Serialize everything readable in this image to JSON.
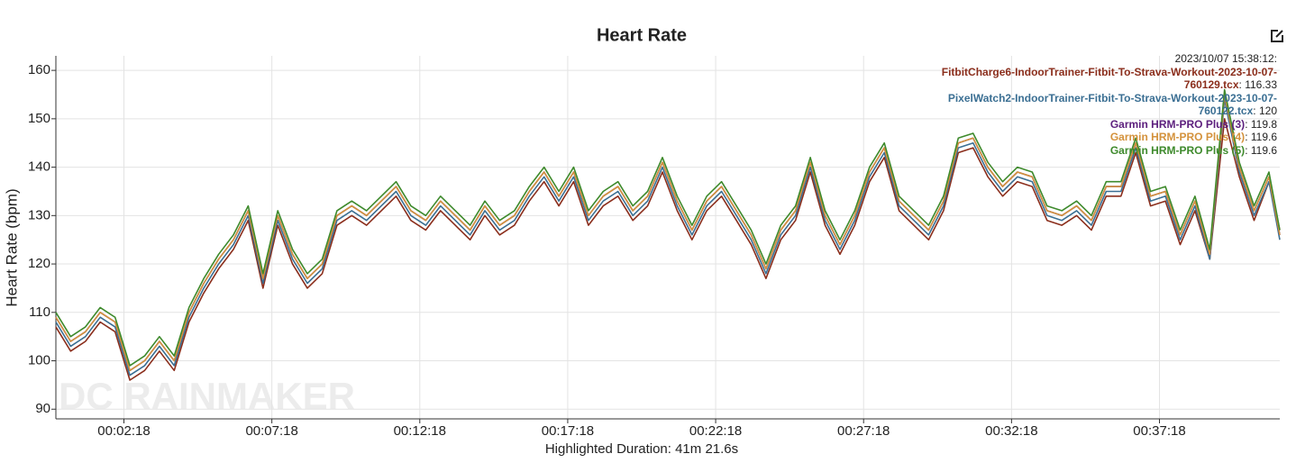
{
  "chart_data": {
    "type": "line",
    "title": "Heart Rate",
    "ylabel": "Heart Rate (bpm)",
    "xlabel": "Highlighted Duration: 41m 21.6s",
    "watermark": "DC RAINMAKER",
    "tooltip_title": "2023/10/07 15:38:12:",
    "grid": true,
    "ylim": [
      88,
      163
    ],
    "yticks": [
      90,
      100,
      110,
      120,
      130,
      140,
      150,
      160
    ],
    "xlim": [
      0,
      2482
    ],
    "xticks": [
      {
        "value": 138,
        "label": "00:02:18"
      },
      {
        "value": 438,
        "label": "00:07:18"
      },
      {
        "value": 738,
        "label": "00:12:18"
      },
      {
        "value": 1038,
        "label": "00:17:18"
      },
      {
        "value": 1338,
        "label": "00:22:18"
      },
      {
        "value": 1638,
        "label": "00:27:18"
      },
      {
        "value": 1938,
        "label": "00:32:18"
      },
      {
        "value": 2238,
        "label": "00:37:18"
      }
    ],
    "x": [
      0,
      30,
      60,
      90,
      120,
      150,
      180,
      210,
      240,
      270,
      300,
      330,
      360,
      390,
      420,
      450,
      480,
      510,
      540,
      570,
      600,
      630,
      660,
      690,
      720,
      750,
      780,
      810,
      840,
      870,
      900,
      930,
      960,
      990,
      1020,
      1050,
      1080,
      1110,
      1140,
      1170,
      1200,
      1230,
      1260,
      1290,
      1320,
      1350,
      1380,
      1410,
      1440,
      1470,
      1500,
      1530,
      1560,
      1590,
      1620,
      1650,
      1680,
      1710,
      1740,
      1770,
      1800,
      1830,
      1860,
      1890,
      1920,
      1950,
      1980,
      2010,
      2040,
      2070,
      2100,
      2130,
      2160,
      2190,
      2220,
      2250,
      2280,
      2310,
      2340,
      2370,
      2400,
      2430,
      2460,
      2482
    ],
    "series": [
      {
        "name": "FitbitCharge6-IndoorTrainer-Fitbit-To-Strava-Workout-2023-10-07-760129.tcx",
        "color": "#8b2e1c",
        "tooltip_value": 116.33,
        "values": [
          107,
          102,
          104,
          108,
          106,
          96,
          98,
          102,
          98,
          108,
          114,
          119,
          123,
          129,
          115,
          128,
          120,
          115,
          118,
          128,
          130,
          128,
          131,
          134,
          129,
          127,
          131,
          128,
          125,
          130,
          126,
          128,
          133,
          137,
          132,
          137,
          128,
          132,
          134,
          129,
          132,
          139,
          131,
          125,
          131,
          134,
          129,
          124,
          117,
          125,
          129,
          139,
          128,
          122,
          128,
          137,
          142,
          131,
          128,
          125,
          131,
          143,
          144,
          138,
          134,
          137,
          136,
          129,
          128,
          130,
          127,
          134,
          134,
          143,
          132,
          133,
          124,
          131,
          121,
          150,
          138,
          129,
          137,
          127
        ]
      },
      {
        "name": "PixelWatch2-IndoorTrainer-Fitbit-To-Strava-Workout-2023-10-07-760122.tcx",
        "color": "#3b6f93",
        "tooltip_value": 120,
        "values": [
          108,
          103,
          105,
          109,
          107,
          97,
          99,
          103,
          99,
          109,
          115,
          120,
          124,
          130,
          116,
          129,
          121,
          116,
          119,
          129,
          131,
          129,
          132,
          135,
          130,
          128,
          132,
          129,
          126,
          131,
          127,
          129,
          134,
          138,
          133,
          138,
          129,
          133,
          135,
          130,
          133,
          140,
          132,
          126,
          132,
          135,
          130,
          125,
          118,
          126,
          130,
          140,
          129,
          123,
          129,
          138,
          143,
          132,
          129,
          126,
          132,
          144,
          145,
          139,
          135,
          138,
          137,
          130,
          129,
          131,
          128,
          135,
          135,
          144,
          133,
          134,
          125,
          132,
          121,
          154,
          139,
          130,
          137,
          125
        ]
      },
      {
        "name": "Garmin HRM-PRO Plus (3)",
        "color": "#5c1f7d",
        "tooltip_value": 119.8,
        "values": [
          109,
          104,
          106,
          110,
          108,
          98,
          100,
          104,
          100,
          110,
          116,
          121,
          125,
          131,
          117,
          130,
          122,
          117,
          120,
          130,
          132,
          130,
          133,
          136,
          131,
          129,
          133,
          130,
          127,
          132,
          128,
          130,
          135,
          139,
          134,
          139,
          130,
          134,
          136,
          131,
          134,
          141,
          133,
          127,
          133,
          136,
          131,
          126,
          119,
          127,
          131,
          141,
          130,
          124,
          130,
          139,
          144,
          133,
          130,
          127,
          133,
          145,
          146,
          140,
          136,
          139,
          138,
          131,
          130,
          132,
          129,
          136,
          136,
          145,
          134,
          135,
          126,
          133,
          122,
          155,
          140,
          131,
          138,
          126
        ]
      },
      {
        "name": "Garmin HRM-PRO Plus (4)",
        "color": "#d4923c",
        "tooltip_value": 119.6,
        "values": [
          109,
          104,
          106,
          110,
          108,
          98,
          100,
          104,
          100,
          110,
          116,
          121,
          125,
          131,
          117,
          130,
          122,
          117,
          120,
          130,
          132,
          130,
          133,
          136,
          131,
          129,
          133,
          130,
          127,
          132,
          128,
          130,
          135,
          139,
          134,
          139,
          130,
          134,
          136,
          131,
          134,
          141,
          133,
          127,
          133,
          136,
          131,
          126,
          119,
          127,
          131,
          141,
          130,
          124,
          130,
          139,
          144,
          133,
          130,
          127,
          133,
          145,
          146,
          140,
          136,
          139,
          138,
          131,
          130,
          132,
          129,
          136,
          136,
          145,
          134,
          135,
          126,
          133,
          122,
          155,
          140,
          131,
          138,
          126
        ]
      },
      {
        "name": "Garmin HRM-PRO Plus (5)",
        "color": "#3e8a2c",
        "tooltip_value": 119.6,
        "values": [
          110,
          105,
          107,
          111,
          109,
          99,
          101,
          105,
          101,
          111,
          117,
          122,
          126,
          132,
          118,
          131,
          123,
          118,
          121,
          131,
          133,
          131,
          134,
          137,
          132,
          130,
          134,
          131,
          128,
          133,
          129,
          131,
          136,
          140,
          135,
          140,
          131,
          135,
          137,
          132,
          135,
          142,
          134,
          128,
          134,
          137,
          132,
          127,
          120,
          128,
          132,
          142,
          131,
          125,
          131,
          140,
          145,
          134,
          131,
          128,
          134,
          146,
          147,
          141,
          137,
          140,
          139,
          132,
          131,
          133,
          130,
          137,
          137,
          146,
          135,
          136,
          127,
          134,
          123,
          156,
          141,
          132,
          139,
          127
        ]
      }
    ]
  }
}
